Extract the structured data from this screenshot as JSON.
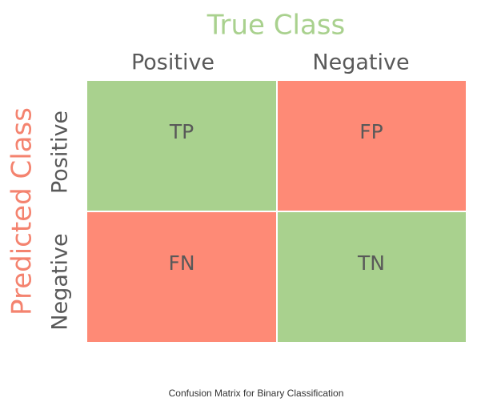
{
  "title": "True Class",
  "row_title": "Predicted Class",
  "columns": [
    "Positive",
    "Negative"
  ],
  "rows": [
    "Positive",
    "Negative"
  ],
  "cells": [
    [
      "TP",
      "FP"
    ],
    [
      "FN",
      "TN"
    ]
  ],
  "caption": "Confusion Matrix for Binary Classification"
}
